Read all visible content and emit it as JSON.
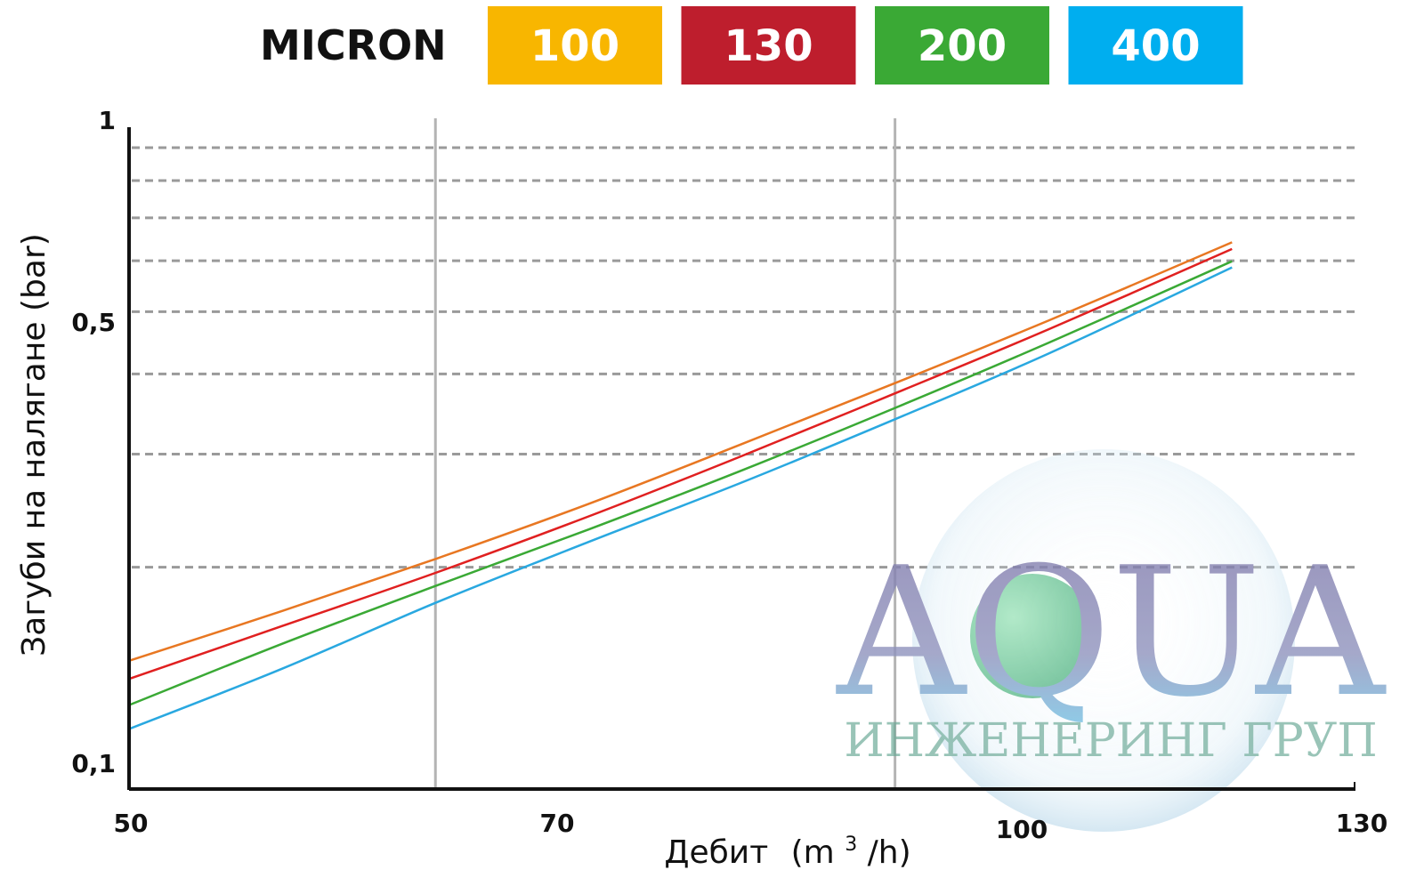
{
  "legend": {
    "title": "MICRON",
    "items": [
      {
        "label": "100",
        "color": "#F8B600"
      },
      {
        "label": "130",
        "color": "#BE1E2D"
      },
      {
        "label": "200",
        "color": "#3AA935"
      },
      {
        "label": "400",
        "color": "#00AEEF"
      }
    ]
  },
  "watermark": {
    "big": "AQUA",
    "small": "ИНЖЕНЕРИНГ ГРУП"
  },
  "chart_data": {
    "type": "line",
    "xlabel": "Дебит (m³/h)",
    "xlabel_main": "Дебит",
    "xlabel_unit_pre": "(m",
    "xlabel_unit_sup": "3",
    "xlabel_unit_post": "/h)",
    "ylabel": "Загуби на налягане (bar)",
    "x_ticks": [
      {
        "value": 50,
        "label": "50"
      },
      {
        "value": 70,
        "label": "70"
      },
      {
        "value": 100,
        "label": "100"
      },
      {
        "value": 130,
        "label": "130"
      }
    ],
    "y_ticks": [
      {
        "value": 0.1,
        "label": "0,1"
      },
      {
        "value": 0.5,
        "label": "0,5"
      },
      {
        "value": 1,
        "label": "1"
      }
    ],
    "y_scale": "log",
    "ylim": [
      0.1,
      1
    ],
    "x_gridlines": [
      70,
      100
    ],
    "y_gridlines": [
      0.2,
      0.3,
      0.4,
      0.5,
      0.6,
      0.7,
      0.8,
      0.9
    ],
    "series": [
      {
        "name": "100",
        "color": "#E87722",
        "x": [
          50,
          60,
          70,
          80,
          90,
          100,
          110,
          122
        ],
        "y": [
          0.143,
          0.171,
          0.206,
          0.251,
          0.311,
          0.387,
          0.484,
          0.641
        ]
      },
      {
        "name": "130",
        "color": "#E02020",
        "x": [
          50,
          60,
          70,
          80,
          90,
          100,
          110,
          122
        ],
        "y": [
          0.134,
          0.162,
          0.196,
          0.24,
          0.298,
          0.373,
          0.469,
          0.626
        ]
      },
      {
        "name": "200",
        "color": "#3AA935",
        "x": [
          50,
          60,
          70,
          80,
          90,
          100,
          110,
          122
        ],
        "y": [
          0.122,
          0.152,
          0.187,
          0.229,
          0.283,
          0.354,
          0.447,
          0.599
        ]
      },
      {
        "name": "400",
        "color": "#29A8E0",
        "x": [
          50,
          60,
          70,
          80,
          90,
          100,
          110,
          122
        ],
        "y": [
          0.112,
          0.139,
          0.176,
          0.219,
          0.271,
          0.34,
          0.43,
          0.586
        ]
      }
    ]
  }
}
